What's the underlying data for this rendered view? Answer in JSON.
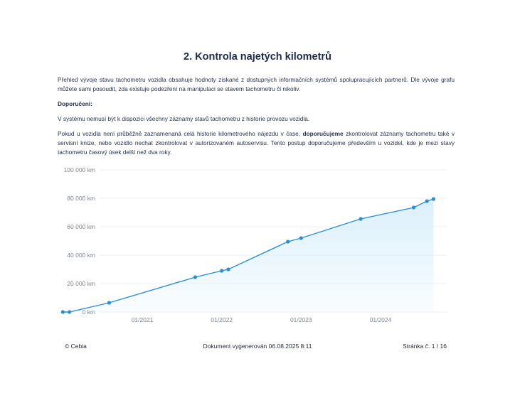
{
  "heading": "2. Kontrola najetých kilometrů",
  "paragraphs": {
    "overview": "Přehled vývoje stavu tachometru vozidla obsahuje hodnoty získané z dostupných informačních systémů spolupracujících partnerů. Dle vývoje grafu můžete sami posoudit, zda existuje podezření na manipulaci se stavem tachometru či nikoliv.",
    "recommendation_label": "Doporučení:",
    "note": "V systému nemusí být k dispozici všechny záznamy stavů tachometru z historie provozu vozidla.",
    "advice_part1": "Pokud u vozidla není průběžně zaznamenaná celá historie kilometrového nájezdu v čase, ",
    "advice_bold": "doporučujeme",
    "advice_part2": " zkontrolovat záznamy tachometru také v servisní knize, nebo vozidlo nechat zkontrolovat v autorizovaném autoservisu. Tento postup doporučujeme především u vozidel, kde je mezi stavy tachometru časový úsek delší než dva roky."
  },
  "chart_data": {
    "type": "area",
    "x_unit": "date",
    "y_unit": "km",
    "ylim": [
      0,
      100000
    ],
    "y_ticks": [
      0,
      20000,
      40000,
      60000,
      80000,
      100000
    ],
    "y_tick_labels": [
      "0 km",
      "20 000 km",
      "40 000 km",
      "60 000 km",
      "80 000 km",
      "100 000 km"
    ],
    "x_ticks": [
      "2021-01",
      "2022-01",
      "2023-01",
      "2024-01"
    ],
    "x_tick_labels": [
      "01/2021",
      "01/2022",
      "01/2023",
      "01/2024"
    ],
    "grid": true,
    "colors": {
      "line": "#2b8fd1",
      "fill": "#d9effb",
      "grid": "#e6e9ee"
    },
    "points": [
      {
        "x": "2020-01",
        "y": 0
      },
      {
        "x": "2020-02",
        "y": 0
      },
      {
        "x": "2020-08",
        "y": 6500
      },
      {
        "x": "2021-09",
        "y": 24500
      },
      {
        "x": "2022-01",
        "y": 29000
      },
      {
        "x": "2022-02",
        "y": 30000
      },
      {
        "x": "2022-11",
        "y": 49500
      },
      {
        "x": "2023-01",
        "y": 52000
      },
      {
        "x": "2023-10",
        "y": 65500
      },
      {
        "x": "2024-06",
        "y": 73500
      },
      {
        "x": "2024-08",
        "y": 78000
      },
      {
        "x": "2024-09",
        "y": 79500
      }
    ]
  },
  "footer": {
    "copyright": "© Cebia",
    "generated": "Dokument vygenerován 06.08.2025 8:11",
    "page": "Stránka č. 1 / 16"
  }
}
